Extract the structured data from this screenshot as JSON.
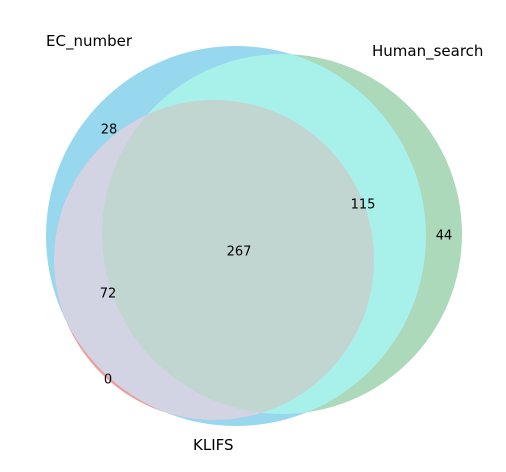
{
  "sets": [
    {
      "name": "EC_number",
      "color": "#7ec8e3"
    },
    {
      "name": "Human_search",
      "color": "#90d4a1"
    },
    {
      "name": "KLIFS",
      "color": "#e8807a"
    }
  ],
  "counts": {
    "ec_only": "28",
    "human_only": "44",
    "klifs_only": "0",
    "ec_human": "115",
    "ec_klifs": "72",
    "all_three": "267"
  },
  "colors": {
    "ec_only": "#98d8ef",
    "human_only": "#acd9ba",
    "klifs_only": "#eaa0a0",
    "ec_human": "#a8f0ea",
    "ec_klifs": "#d2d4e4",
    "all_three": "#c2d6d1"
  }
}
